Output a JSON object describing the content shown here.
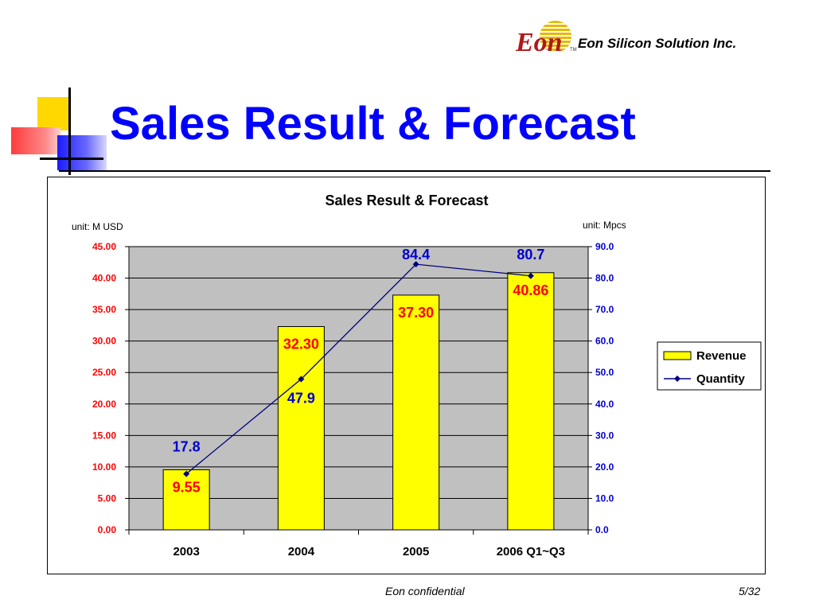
{
  "header": {
    "slide_title": "Sales Result & Forecast",
    "logo_text": "Eon",
    "logo_tm": "TM",
    "company_name": "Eon Silicon Solution Inc."
  },
  "footer": {
    "confidential": "Eon confidential",
    "page": "5/32"
  },
  "colors": {
    "title_blue": "#0000ff",
    "bar_yellow": "#ffff00",
    "plot_gray": "#c0c0c0",
    "value_red": "#ff0000",
    "line_navy": "#000080",
    "quantity_label_blue": "#0000cc",
    "logo_red": "#b01818",
    "logo_gold": "#e6b800"
  },
  "chart_data": {
    "type": "bar",
    "title": "Sales Result & Forecast",
    "y_left_label": "unit: M USD",
    "y_right_label": "unit: Mpcs",
    "categories": [
      "2003",
      "2004",
      "2005",
      "2006 Q1~Q3"
    ],
    "series": [
      {
        "name": "Revenue",
        "type": "bar",
        "axis": "left",
        "values": [
          9.55,
          32.3,
          37.3,
          40.86
        ],
        "labels": [
          "9.55",
          "32.30",
          "37.30",
          "40.86"
        ]
      },
      {
        "name": "Quantity",
        "type": "line",
        "axis": "right",
        "values": [
          17.8,
          47.9,
          84.4,
          80.7
        ],
        "labels": [
          "17.8",
          "47.9",
          "84.4",
          "80.7"
        ]
      }
    ],
    "ylim_left": [
      0,
      45
    ],
    "ylim_right": [
      0,
      90
    ],
    "yticks_left": [
      "0.00",
      "5.00",
      "10.00",
      "15.00",
      "20.00",
      "25.00",
      "30.00",
      "35.00",
      "40.00",
      "45.00"
    ],
    "yticks_right": [
      "0.0",
      "10.0",
      "20.0",
      "30.0",
      "40.0",
      "50.0",
      "60.0",
      "70.0",
      "80.0",
      "90.0"
    ],
    "grid": true,
    "legend_position": "right"
  }
}
